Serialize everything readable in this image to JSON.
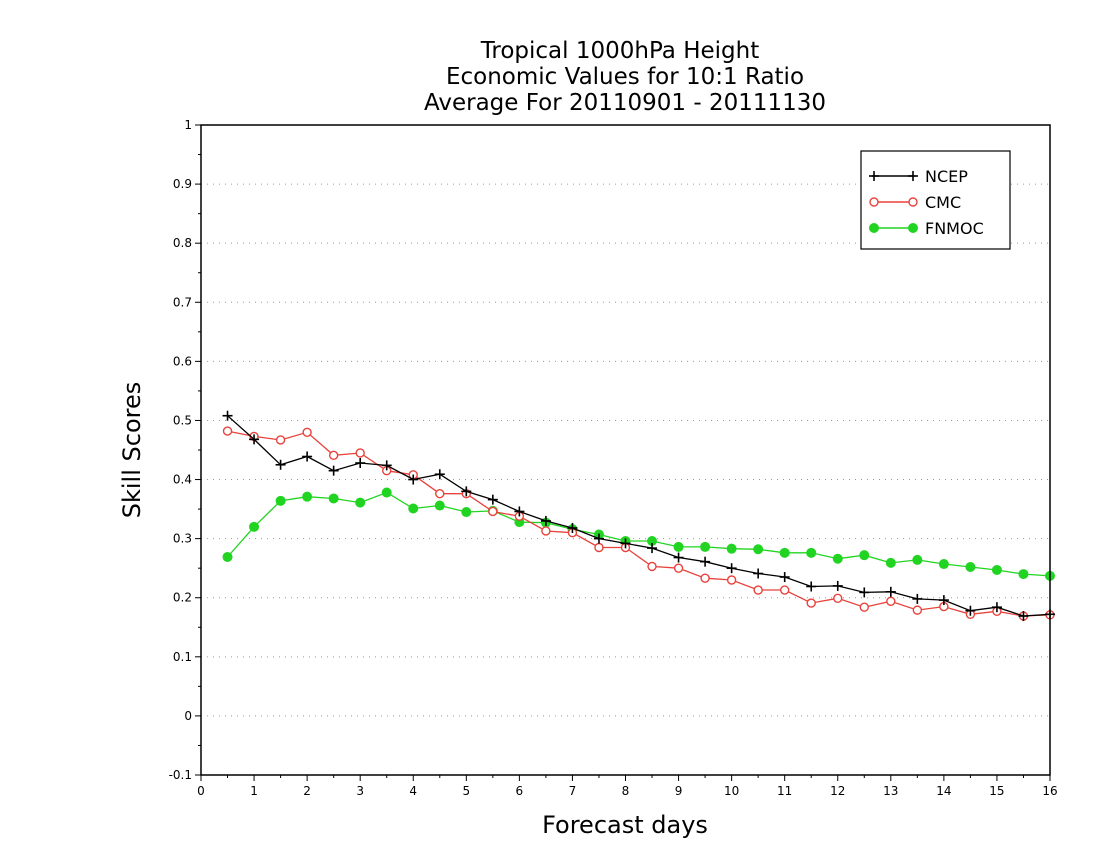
{
  "chart_data": {
    "type": "line",
    "title": [
      "Tropical 1000hPa Height",
      "Economic Values for 10:1 Ratio",
      "Average For 20110901 - 20111130"
    ],
    "xlabel": "Forecast days",
    "ylabel": "Skill Scores",
    "xlim": [
      0,
      16
    ],
    "ylim": [
      -0.1,
      1
    ],
    "xticks": [
      "0",
      "1",
      "2",
      "3",
      "4",
      "5",
      "6",
      "7",
      "8",
      "9",
      "10",
      "11",
      "12",
      "13",
      "14",
      "15",
      "16"
    ],
    "yticks": [
      "-0.1",
      "0",
      "0.1",
      "0.2",
      "0.3",
      "0.4",
      "0.5",
      "0.6",
      "0.7",
      "0.8",
      "0.9",
      "1"
    ],
    "grid": "horizontal-dotted",
    "legend_position": "top-right",
    "x": [
      0.5,
      1,
      1.5,
      2,
      2.5,
      3,
      3.5,
      4,
      4.5,
      5,
      5.5,
      6,
      6.5,
      7,
      7.5,
      8,
      8.5,
      9,
      9.5,
      10,
      10.5,
      11,
      11.5,
      12,
      12.5,
      13,
      13.5,
      14,
      14.5,
      15,
      15.5,
      16
    ],
    "series": [
      {
        "name": "NCEP",
        "color": "#000000",
        "marker": "plus",
        "values": [
          0.508,
          0.468,
          0.425,
          0.439,
          0.415,
          0.428,
          0.424,
          0.4,
          0.409,
          0.38,
          0.366,
          0.346,
          0.33,
          0.318,
          0.3,
          0.292,
          0.284,
          0.268,
          0.261,
          0.25,
          0.241,
          0.235,
          0.219,
          0.22,
          0.209,
          0.21,
          0.198,
          0.196,
          0.178,
          0.184,
          0.169,
          0.172
        ]
      },
      {
        "name": "CMC",
        "color": "#e8423c",
        "marker": "open-circle",
        "values": [
          0.482,
          0.473,
          0.467,
          0.48,
          0.441,
          0.445,
          0.415,
          0.408,
          0.376,
          0.376,
          0.346,
          0.338,
          0.313,
          0.31,
          0.285,
          0.285,
          0.253,
          0.25,
          0.233,
          0.23,
          0.213,
          0.213,
          0.191,
          0.199,
          0.184,
          0.194,
          0.179,
          0.185,
          0.172,
          0.177,
          0.169,
          0.171
        ]
      },
      {
        "name": "FNMOC",
        "color": "#22d422",
        "marker": "filled-circle",
        "values": [
          0.269,
          0.32,
          0.364,
          0.371,
          0.368,
          0.361,
          0.378,
          0.351,
          0.356,
          0.345,
          0.347,
          0.328,
          0.327,
          0.316,
          0.307,
          0.296,
          0.296,
          0.286,
          0.286,
          0.283,
          0.282,
          0.276,
          0.276,
          0.266,
          0.272,
          0.259,
          0.264,
          0.257,
          0.252,
          0.247,
          0.24,
          0.237
        ]
      }
    ]
  }
}
